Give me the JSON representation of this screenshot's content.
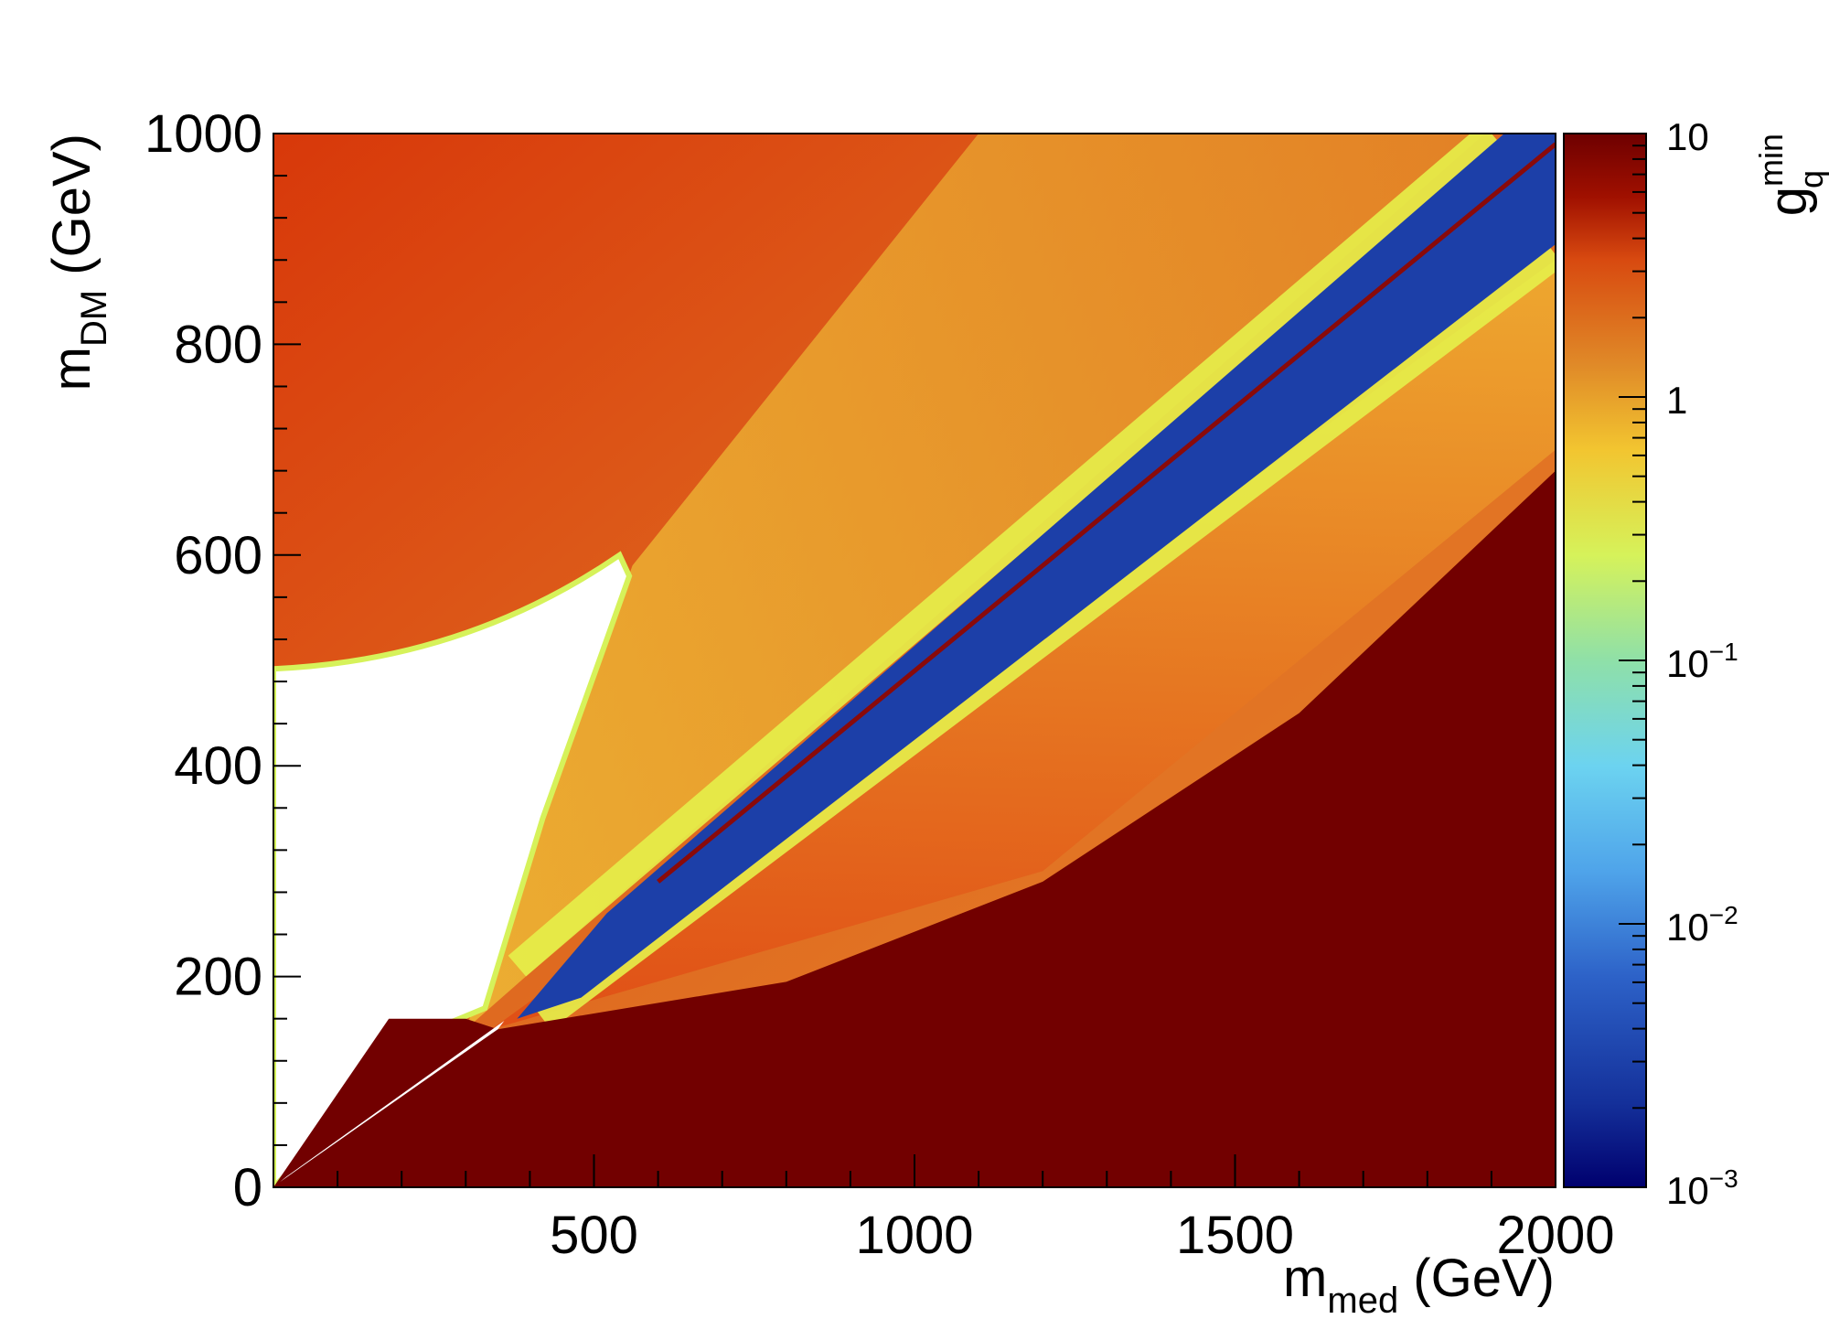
{
  "chart_data": {
    "type": "heatmap",
    "xlabel": {
      "main": "m",
      "sub": "med",
      "unit": " (GeV)"
    },
    "ylabel": {
      "main": "m",
      "sub": "DM",
      "unit": " (GeV)"
    },
    "zlabel": {
      "main": "g",
      "sup": "min",
      "sub": "q"
    },
    "xlim": [
      0,
      2000
    ],
    "ylim": [
      0,
      1000
    ],
    "zlim": [
      0.001,
      10
    ],
    "zscale": "log",
    "x_ticks": [
      500,
      1000,
      1500,
      2000
    ],
    "x_tick_labels": [
      "500",
      "1000",
      "1500",
      "2000"
    ],
    "y_ticks": [
      0,
      200,
      400,
      600,
      800,
      1000
    ],
    "y_tick_labels": [
      "0",
      "200",
      "400",
      "600",
      "800",
      "1000"
    ],
    "z_ticks": [
      {
        "base": "10",
        "exp": "",
        "value": 10
      },
      {
        "base": "1",
        "exp": "",
        "value": 1
      },
      {
        "base": "10",
        "exp": "−1",
        "value": 0.1
      },
      {
        "base": "10",
        "exp": "−2",
        "value": 0.01
      },
      {
        "base": "10",
        "exp": "−3",
        "value": 0.001
      }
    ],
    "regions": [
      {
        "name": "excluded-large-coupling",
        "description_value": ">= 10",
        "boundary_points": [
          [
            350,
            150
          ],
          [
            800,
            195
          ],
          [
            1200,
            290
          ],
          [
            1600,
            450
          ],
          [
            2000,
            680
          ]
        ]
      },
      {
        "name": "resonance-band",
        "center_line": [
          [
            300,
            150
          ],
          [
            2000,
            1000
          ]
        ],
        "value": 0.003
      },
      {
        "name": "white-no-solution-region",
        "boundary_points": [
          [
            0,
            500
          ],
          [
            150,
            520
          ],
          [
            350,
            560
          ],
          [
            560,
            600
          ],
          [
            520,
            520
          ],
          [
            380,
            200
          ],
          [
            300,
            160
          ]
        ]
      }
    ],
    "colormap": [
      "#00006e",
      "#1c3fa8",
      "#4fa4ea",
      "#6cd3f0",
      "#8fe0a8",
      "#d6f25a",
      "#f2c530",
      "#e08a28",
      "#d84a10",
      "#7a0000"
    ],
    "grid": false,
    "legend": "none"
  }
}
